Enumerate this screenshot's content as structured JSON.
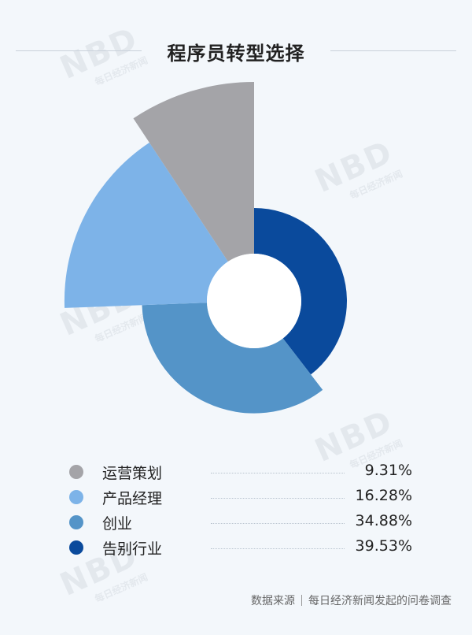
{
  "title": "程序员转型选择",
  "watermark": {
    "brand": "NBD",
    "sub": "每日经济新闻"
  },
  "chart_data": {
    "type": "pie",
    "title": "程序员转型选择",
    "start_angle_deg": 0,
    "inner_radius_ratio": 0.12,
    "slices": [
      {
        "label": "运营策划",
        "value": 9.31,
        "display": "9.31%",
        "color": "#a4a4a8"
      },
      {
        "label": "产品经理",
        "value": 16.28,
        "display": "16.28%",
        "color": "#7db3e8"
      },
      {
        "label": "创业",
        "value": 34.88,
        "display": "34.88%",
        "color": "#5494c8"
      },
      {
        "label": "告别行业",
        "value": 39.53,
        "display": "39.53%",
        "color": "#0a4a9c"
      }
    ]
  },
  "footer": {
    "source_label": "数据来源",
    "source_text": "每日经济新闻发起的问卷调查"
  }
}
